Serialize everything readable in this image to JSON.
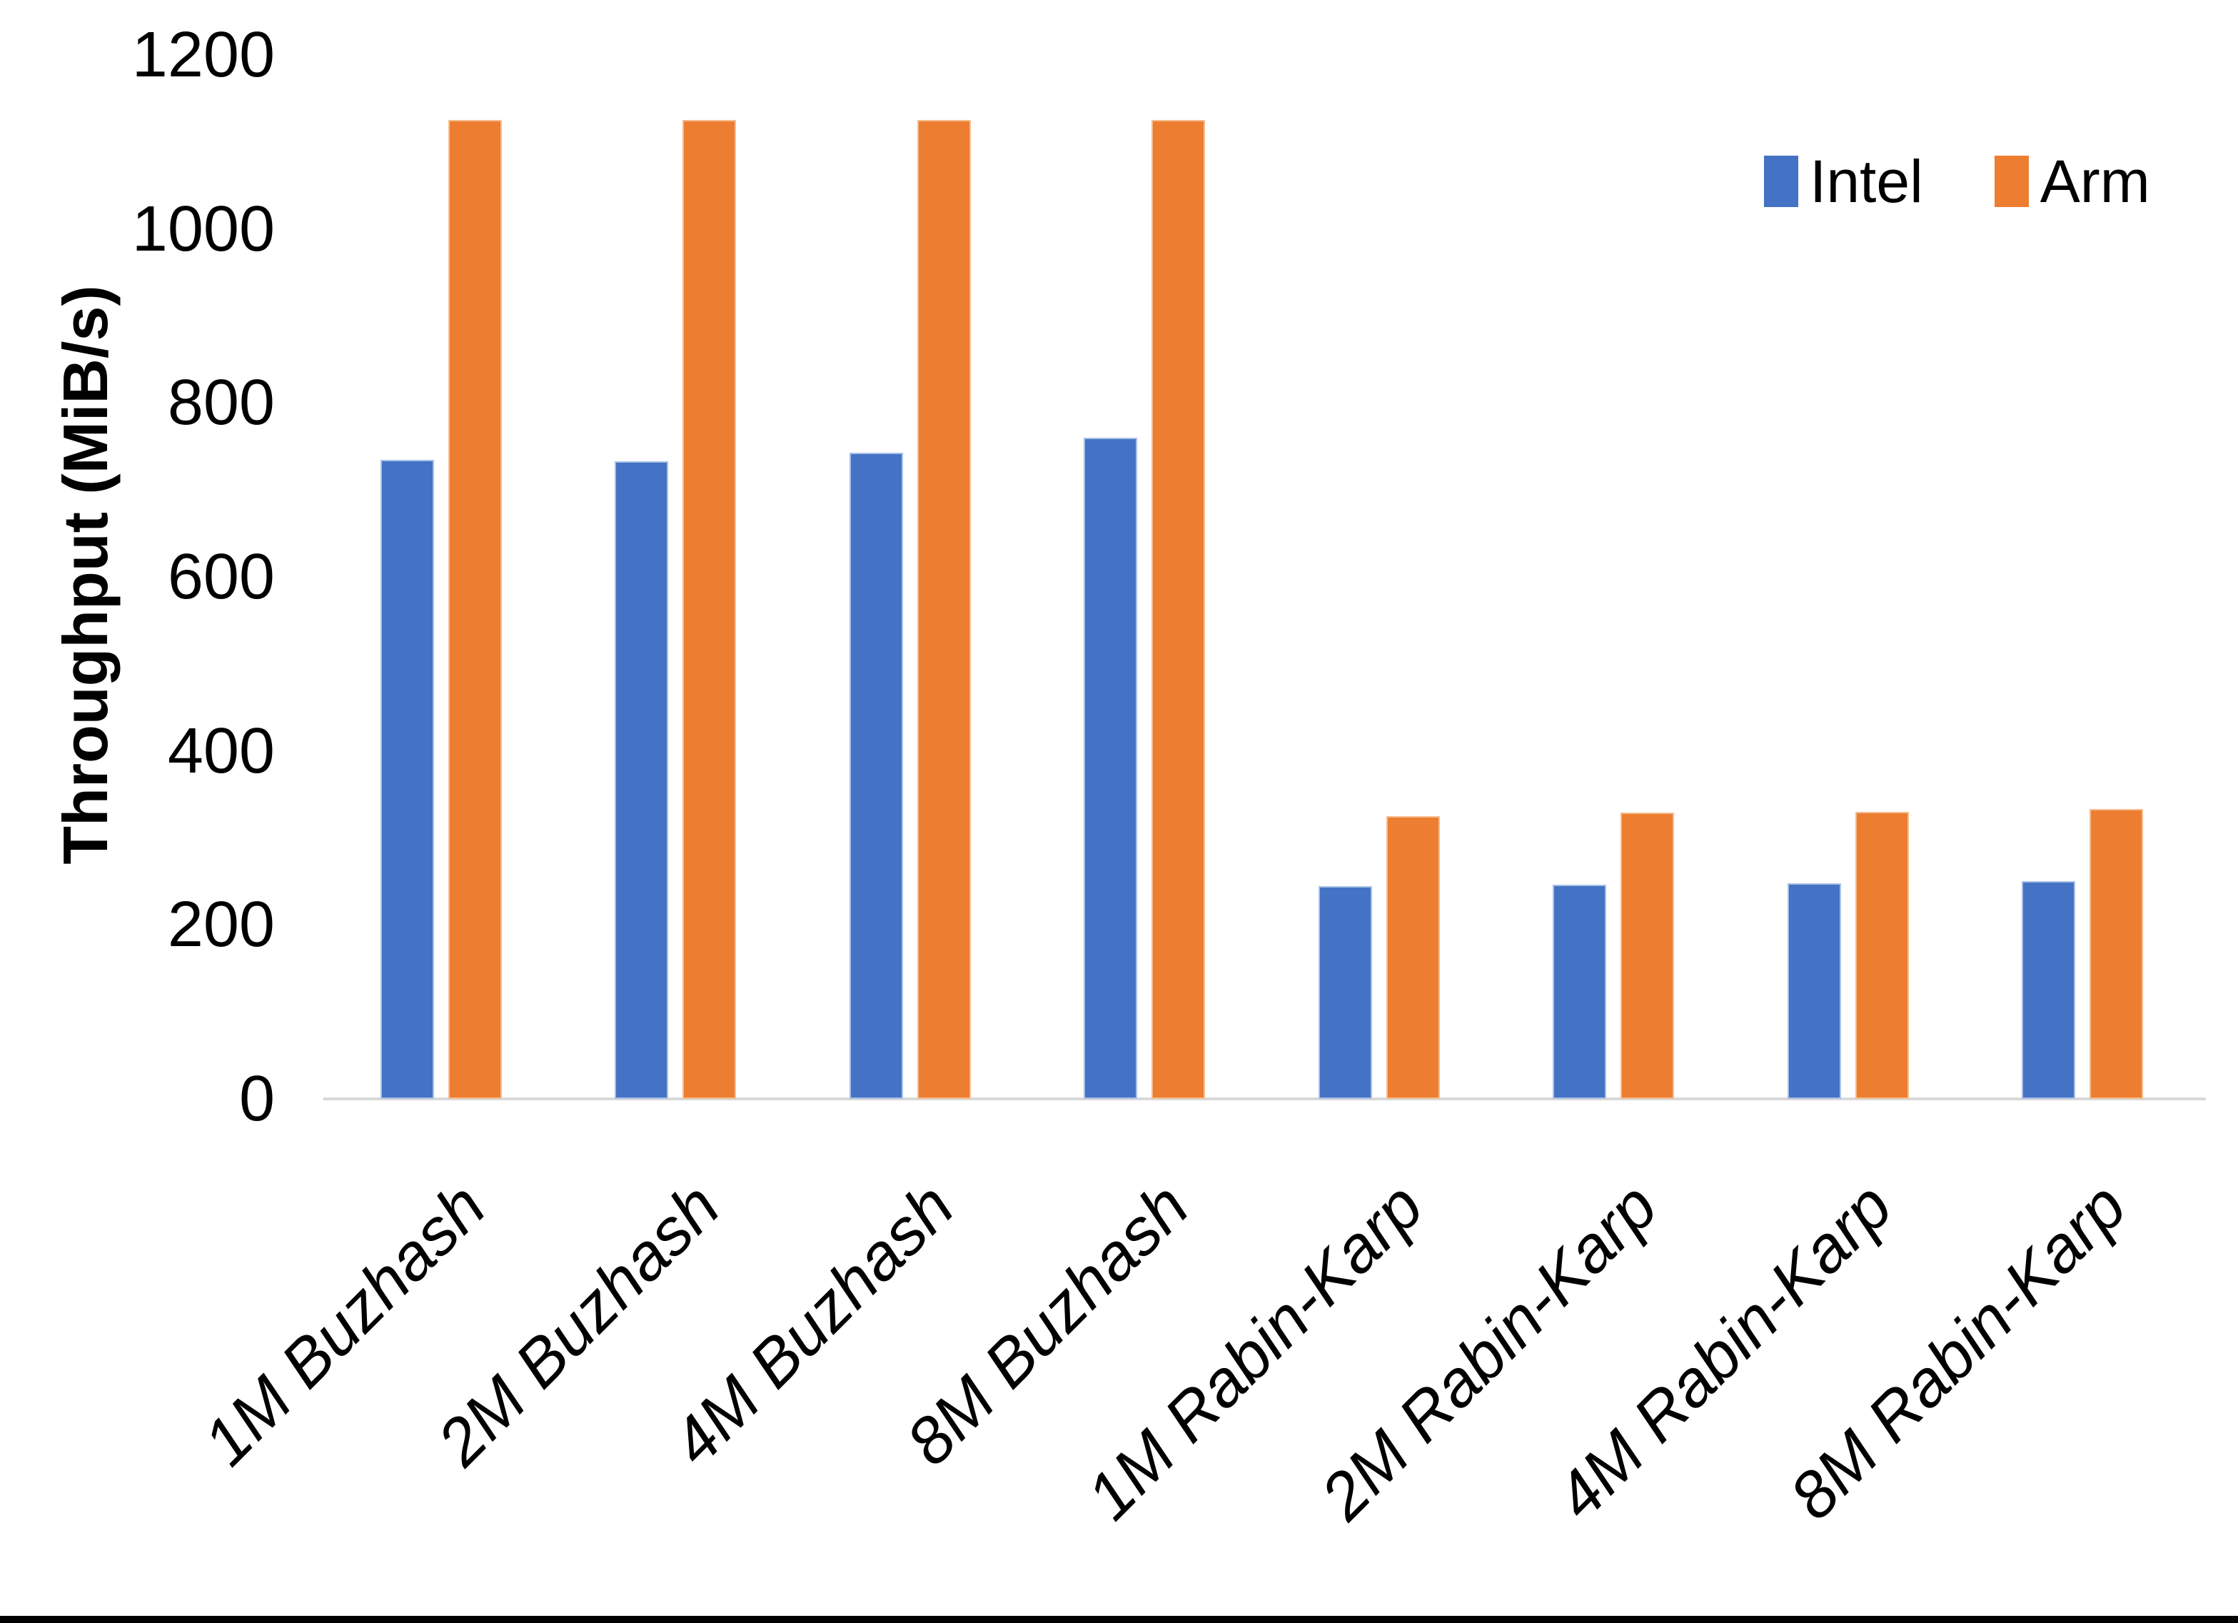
{
  "chart_data": {
    "type": "bar",
    "title": "",
    "xlabel": "",
    "ylabel": "Throughput (MiB/s)",
    "ylim": [
      0,
      1200
    ],
    "yticks": [
      0,
      200,
      400,
      600,
      800,
      1000,
      1200
    ],
    "grid": false,
    "legend_position": "top-right",
    "axis_line_color": "#D9D9D9",
    "text_color": "#000000",
    "categories": [
      "1M Buzhash",
      "2M Buzhash",
      "4M Buzhash",
      "8M Buzhash",
      "1M Rabin-Karp",
      "2M Rabin-Karp",
      "4M Rabin-Karp",
      "8M Rabin-Karp"
    ],
    "series": [
      {
        "name": "Intel",
        "color": "#4472C4",
        "border_color": "#A9C1E8",
        "values": [
          735,
          733,
          743,
          760,
          245,
          246,
          248,
          250
        ]
      },
      {
        "name": "Arm",
        "color": "#ED7D31",
        "border_color": "#F5BE8E",
        "values": [
          1125,
          1125,
          1125,
          1125,
          325,
          329,
          330,
          333
        ]
      }
    ]
  },
  "page": {
    "background_color": "#FFFFFF",
    "bottom_border_color": "#000000"
  }
}
